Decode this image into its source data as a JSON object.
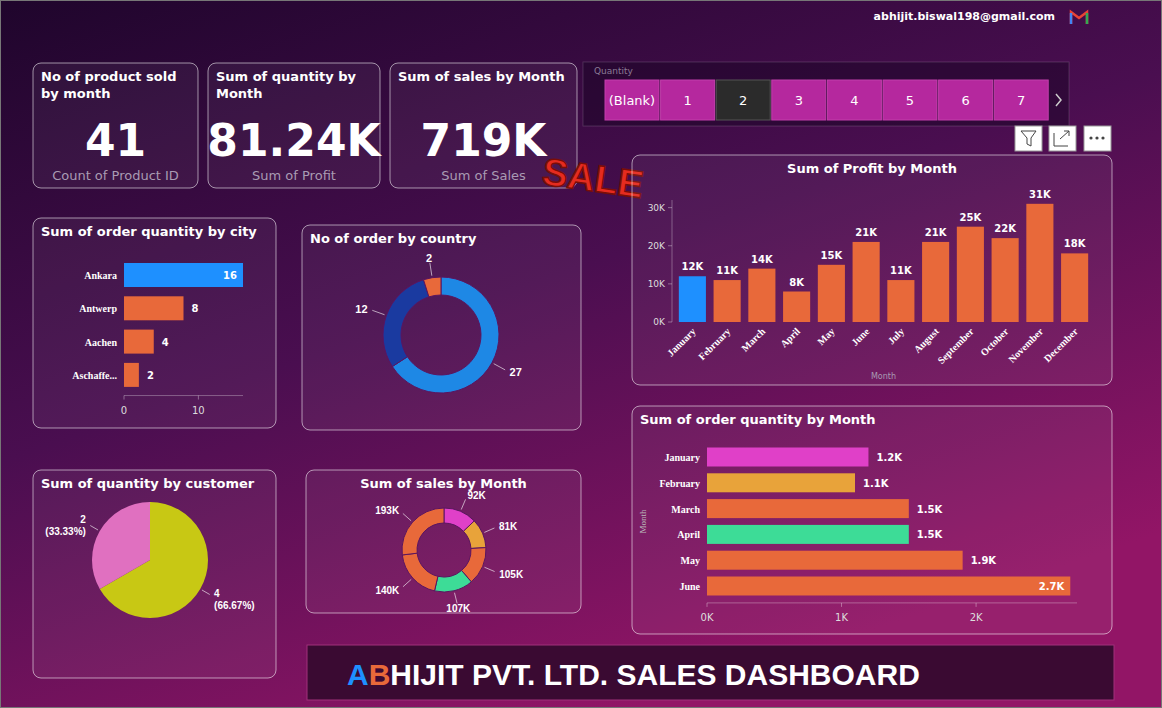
{
  "header": {
    "email": "abhijit.biswal198@gmail.com"
  },
  "cards": [
    {
      "title": "No of product sold by month",
      "value": "41",
      "subtitle": "Count of Product ID"
    },
    {
      "title": "Sum of quantity by Month",
      "value": "81.24K",
      "subtitle": "Sum of Profit"
    },
    {
      "title": "Sum of sales by Month",
      "value": "719K",
      "subtitle": "Sum of Sales"
    }
  ],
  "slicer": {
    "title": "Quantity",
    "items": [
      "(Blank)",
      "1",
      "2",
      "3",
      "4",
      "5",
      "6",
      "7"
    ],
    "selected": "2"
  },
  "decoration": {
    "text": "SALE"
  },
  "chart_data": [
    {
      "type": "bar",
      "title": "Sum of order quantity by city",
      "orientation": "horizontal",
      "categories": [
        "Ankara",
        "Antwerp",
        "Aachen",
        "Aschaffe..."
      ],
      "values": [
        16,
        8,
        4,
        2
      ],
      "colors": [
        "#1e90ff",
        "#e8693a",
        "#e8693a",
        "#e8693a"
      ],
      "xlim": [
        0,
        16
      ],
      "xticks": [
        0,
        10
      ],
      "data_labels": true
    },
    {
      "type": "donut",
      "title": "No of order by country",
      "values": [
        27,
        12,
        2
      ],
      "colors": [
        "#1e88e5",
        "#1a3aa0",
        "#e8693a"
      ],
      "data_labels": true
    },
    {
      "type": "bar",
      "title": "Sum of Profit by Month",
      "x_label": "Month",
      "categories": [
        "January",
        "February",
        "March",
        "April",
        "May",
        "June",
        "July",
        "August",
        "September",
        "October",
        "November",
        "December"
      ],
      "values": [
        12000,
        11000,
        14000,
        8000,
        15000,
        21000,
        11000,
        21000,
        25000,
        22000,
        31000,
        18000
      ],
      "value_labels": [
        "12K",
        "11K",
        "14K",
        "8K",
        "15K",
        "21K",
        "11K",
        "21K",
        "25K",
        "22K",
        "31K",
        "18K"
      ],
      "colors": [
        "#1e90ff",
        "#e8693a",
        "#e8693a",
        "#e8693a",
        "#e8693a",
        "#e8693a",
        "#e8693a",
        "#e8693a",
        "#e8693a",
        "#e8693a",
        "#e8693a",
        "#e8693a"
      ],
      "ylim": [
        0,
        32000
      ],
      "yticks": [
        {
          "value": 0,
          "label": "0K"
        },
        {
          "value": 10000,
          "label": "10K"
        },
        {
          "value": 20000,
          "label": "20K"
        },
        {
          "value": 30000,
          "label": "30K"
        }
      ],
      "data_labels": true
    },
    {
      "type": "bar",
      "title": "Sum of order quantity by Month",
      "orientation": "horizontal",
      "y_label": "Month",
      "categories": [
        "January",
        "February",
        "March",
        "April",
        "May",
        "June"
      ],
      "values": [
        1200,
        1100,
        1500,
        1500,
        1900,
        2700
      ],
      "value_labels": [
        "1.2K",
        "1.1K",
        "1.5K",
        "1.5K",
        "1.9K",
        "2.7K"
      ],
      "colors": [
        "#e040c8",
        "#e8a33a",
        "#e8693a",
        "#3ddc97",
        "#e8693a",
        "#e8693a"
      ],
      "xlim": [
        0,
        2750
      ],
      "xticks": [
        {
          "value": 0,
          "label": "0K"
        },
        {
          "value": 1000,
          "label": "1K"
        },
        {
          "value": 2000,
          "label": "2K"
        }
      ],
      "data_labels": true
    },
    {
      "type": "pie",
      "title": "Sum of quantity by customer",
      "values": [
        4,
        2
      ],
      "value_labels": [
        "4 (66.67%)",
        "2 (33.33%)"
      ],
      "colors": [
        "#c8c814",
        "#e070c0"
      ],
      "data_labels": true
    },
    {
      "type": "donut",
      "title": "Sum of sales by Month",
      "values": [
        92000,
        81000,
        105000,
        107000,
        140000,
        193000
      ],
      "value_labels": [
        "92K",
        "81K",
        "105K",
        "107K",
        "140K",
        "193K"
      ],
      "colors": [
        "#e040c8",
        "#e8a33a",
        "#e8693a",
        "#3ddc97",
        "#e8693a",
        "#e8693a"
      ],
      "data_labels": true
    }
  ],
  "footer": {
    "title": "ABHIJIT PVT. LTD. SALES DASHBOARD"
  }
}
